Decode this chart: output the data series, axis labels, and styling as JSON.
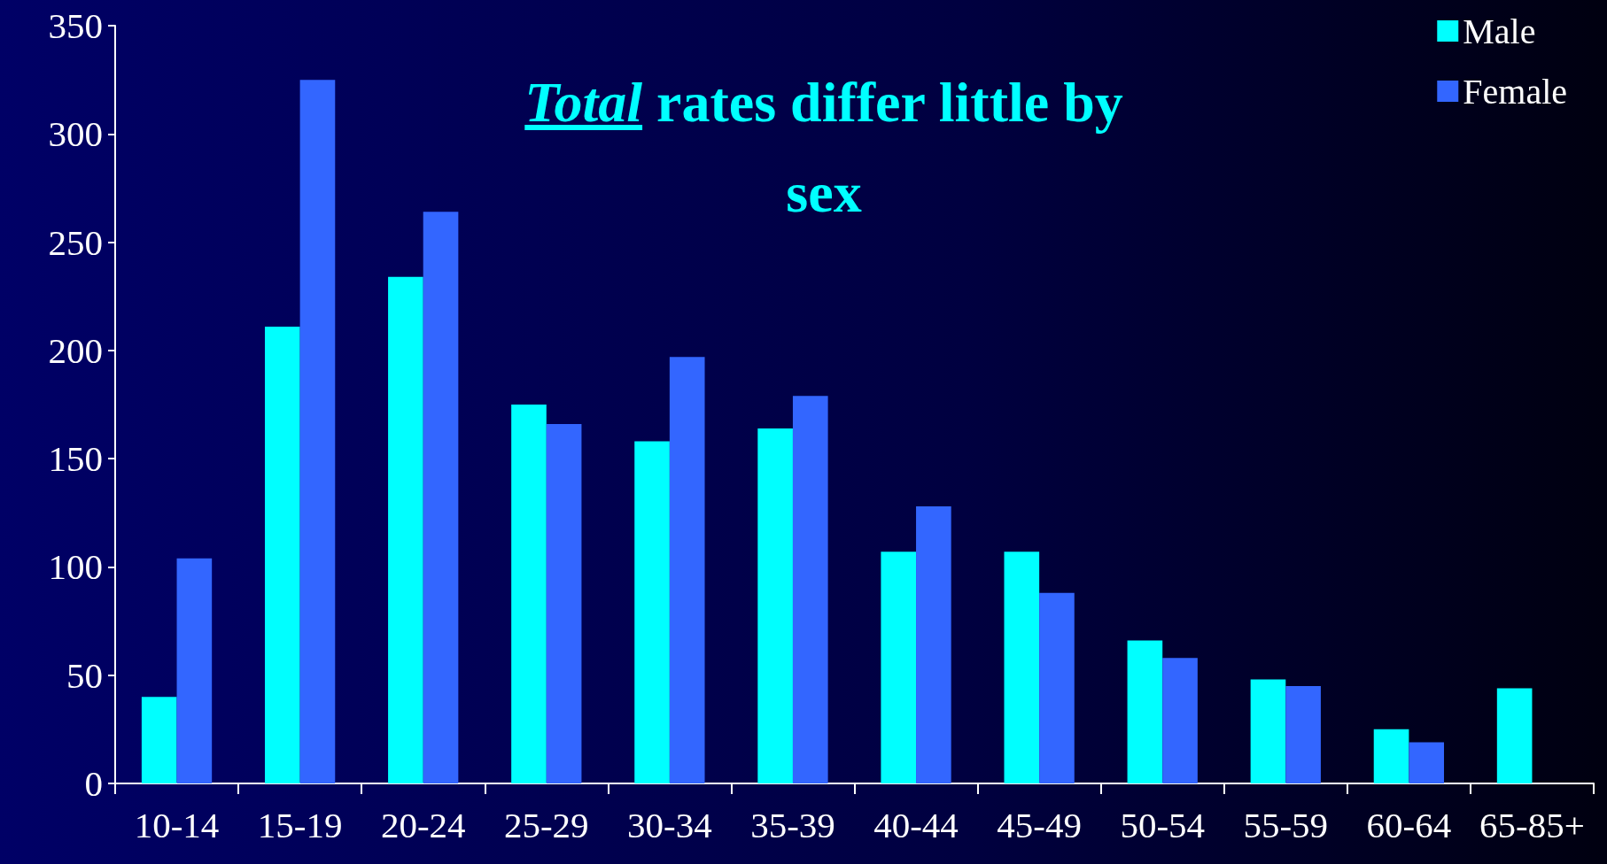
{
  "chart_data": {
    "type": "bar",
    "title": "Total rates differ little by sex",
    "categories": [
      "10-14",
      "15-19",
      "20-24",
      "25-29",
      "30-34",
      "35-39",
      "40-44",
      "45-49",
      "50-54",
      "55-59",
      "60-64",
      "65-85+"
    ],
    "series": [
      {
        "name": "Male",
        "color": "#00ffff",
        "values": [
          40,
          211,
          234,
          175,
          158,
          164,
          107,
          107,
          66,
          48,
          25,
          44
        ]
      },
      {
        "name": "Female",
        "color": "#3366ff",
        "values": [
          104,
          325,
          264,
          166,
          197,
          179,
          128,
          88,
          58,
          45,
          19,
          null
        ]
      }
    ],
    "ylim": [
      0,
      350
    ],
    "yticks": [
      0,
      50,
      100,
      150,
      200,
      250,
      300,
      350
    ],
    "grid": false,
    "legend": "top right"
  }
}
